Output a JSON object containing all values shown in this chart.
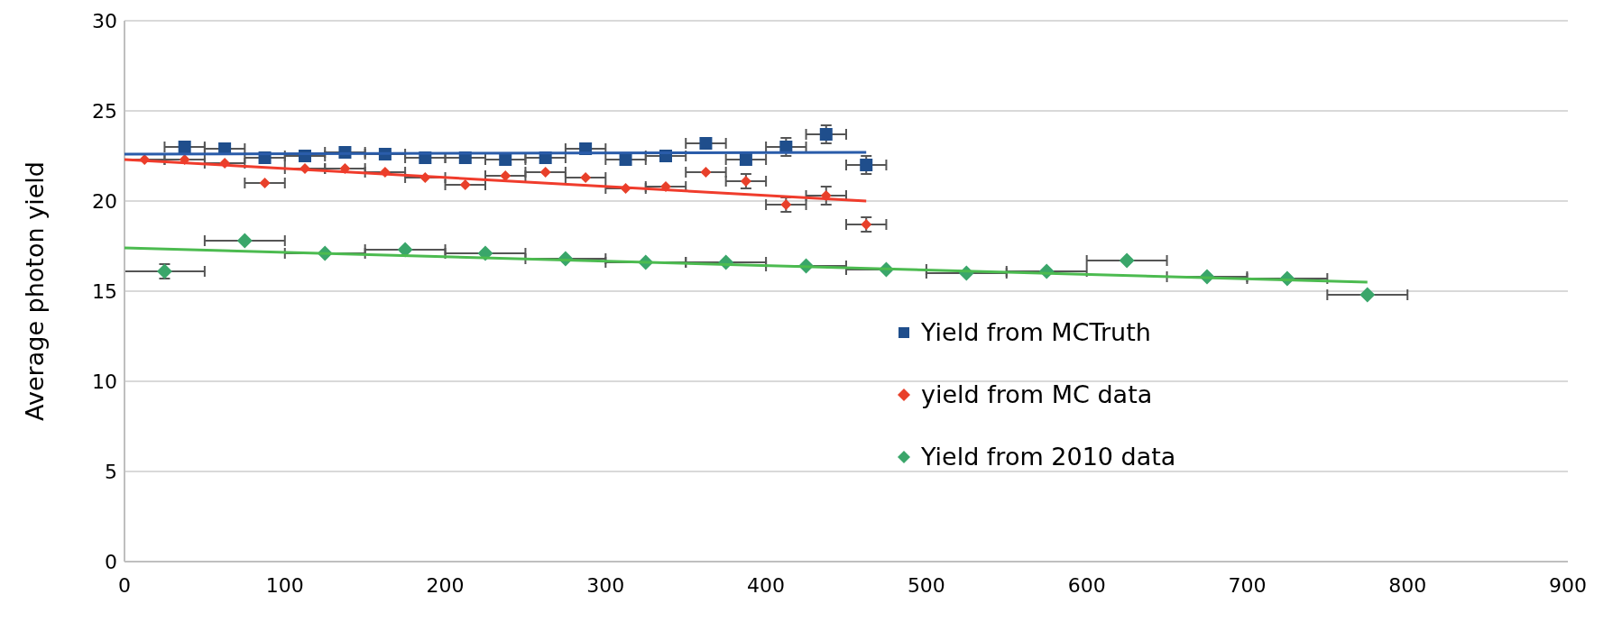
{
  "chart_data": {
    "type": "scatter",
    "ylabel": "Average photon yield",
    "xlim": [
      0,
      900
    ],
    "xticks": [
      0,
      100,
      200,
      300,
      400,
      500,
      600,
      700,
      800,
      900
    ],
    "ylim": [
      0,
      30
    ],
    "yticks": [
      0,
      5,
      10,
      15,
      20,
      25,
      30
    ],
    "grid": "y",
    "legend": "bottom right",
    "series": [
      {
        "name": "Yield from MCTruth",
        "color": "#1f4e8c",
        "marker": "square",
        "x": [
          37.5,
          62.5,
          87.5,
          112.5,
          137.5,
          162.5,
          187.5,
          212.5,
          237.5,
          262.5,
          287.5,
          312.5,
          337.5,
          362.5,
          387.5,
          412.5,
          437.5,
          462.5
        ],
        "values": [
          23.0,
          22.9,
          22.4,
          22.5,
          22.7,
          22.6,
          22.4,
          22.4,
          22.3,
          22.4,
          22.9,
          22.3,
          22.5,
          23.2,
          22.3,
          23.0,
          23.7,
          22.0
        ],
        "xerrors": [
          12.5,
          12.5,
          12.5,
          12.5,
          12.5,
          12.5,
          12.5,
          12.5,
          12.5,
          12.5,
          12.5,
          12.5,
          12.5,
          12.5,
          12.5,
          12.5,
          12.5,
          12.5
        ],
        "errors": [
          null,
          null,
          null,
          null,
          null,
          null,
          null,
          null,
          null,
          null,
          null,
          null,
          null,
          null,
          null,
          0.5,
          0.5,
          0.5
        ]
      },
      {
        "name": "yield from MC data",
        "color": "#e8402a",
        "marker": "diamond",
        "x": [
          12.5,
          37.5,
          62.5,
          87.5,
          112.5,
          137.5,
          162.5,
          187.5,
          212.5,
          237.5,
          262.5,
          287.5,
          312.5,
          337.5,
          362.5,
          387.5,
          412.5,
          437.5,
          462.5
        ],
        "values": [
          22.3,
          22.3,
          22.1,
          21.0,
          21.8,
          21.8,
          21.6,
          21.3,
          20.9,
          21.4,
          21.6,
          21.3,
          20.7,
          20.8,
          21.6,
          21.1,
          19.8,
          20.3,
          18.7
        ],
        "xerrors": [
          12.5,
          12.5,
          12.5,
          12.5,
          12.5,
          12.5,
          12.5,
          12.5,
          12.5,
          12.5,
          12.5,
          12.5,
          12.5,
          12.5,
          12.5,
          12.5,
          12.5,
          12.5,
          12.5
        ],
        "errors": [
          null,
          null,
          null,
          null,
          null,
          null,
          null,
          null,
          null,
          null,
          null,
          null,
          null,
          null,
          null,
          0.4,
          0.4,
          0.5,
          0.4
        ]
      },
      {
        "name": "Yield from 2010 data",
        "color": "#3aa66a",
        "marker": "diamond",
        "x": [
          25,
          75,
          125,
          175,
          225,
          275,
          325,
          375,
          425,
          475,
          525,
          575,
          625,
          675,
          725,
          775
        ],
        "values": [
          16.1,
          17.8,
          17.1,
          17.3,
          17.1,
          16.8,
          16.6,
          16.6,
          16.4,
          16.2,
          16.0,
          16.1,
          16.7,
          15.8,
          15.7,
          14.8
        ],
        "xerrors": [
          25,
          25,
          25,
          25,
          25,
          25,
          25,
          25,
          25,
          25,
          25,
          25,
          25,
          25,
          25,
          25
        ],
        "errors": [
          0.4,
          null,
          null,
          null,
          null,
          null,
          null,
          null,
          null,
          null,
          null,
          null,
          null,
          null,
          null,
          null
        ]
      },
      {
        "type": "line",
        "color": "#2a5caa",
        "marker": "none",
        "x": [
          0,
          462.5
        ],
        "values": [
          22.6,
          22.7
        ]
      },
      {
        "type": "line",
        "color": "#f03c2c",
        "marker": "none",
        "x": [
          0,
          462.5
        ],
        "values": [
          22.3,
          20.0
        ]
      },
      {
        "type": "line",
        "color": "#4cbb50",
        "marker": "none",
        "x": [
          0,
          775
        ],
        "values": [
          17.4,
          15.5
        ]
      }
    ]
  }
}
